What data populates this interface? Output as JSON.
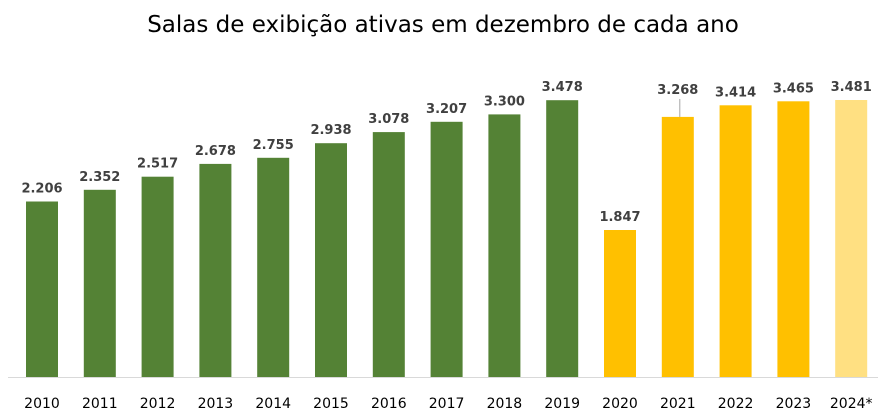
{
  "chart_data": {
    "type": "bar",
    "title": "Salas de exibição ativas em dezembro de cada ano",
    "xlabel": "",
    "ylabel": "",
    "ylim": [
      0,
      3600
    ],
    "grid": false,
    "categories": [
      "2010",
      "2011",
      "2012",
      "2013",
      "2014",
      "2015",
      "2016",
      "2017",
      "2018",
      "2019",
      "2020",
      "2021",
      "2022",
      "2023",
      "2024*"
    ],
    "values": [
      2206,
      2352,
      2517,
      2678,
      2755,
      2938,
      3078,
      3207,
      3300,
      3478,
      1847,
      3268,
      3414,
      3465,
      3481
    ],
    "value_labels": [
      "2.206",
      "2.352",
      "2.517",
      "2.678",
      "2.755",
      "2.938",
      "3.078",
      "3.207",
      "3.300",
      "3.478",
      "1.847",
      "3.268",
      "3.414",
      "3.465",
      "3.481"
    ],
    "bar_colors": [
      "#548235",
      "#548235",
      "#548235",
      "#548235",
      "#548235",
      "#548235",
      "#548235",
      "#548235",
      "#548235",
      "#548235",
      "#FFC000",
      "#FFC000",
      "#FFC000",
      "#FFC000",
      "#FFE082"
    ],
    "axis_color": "#d9d9d9",
    "leader_color": "#a6a6a6"
  }
}
